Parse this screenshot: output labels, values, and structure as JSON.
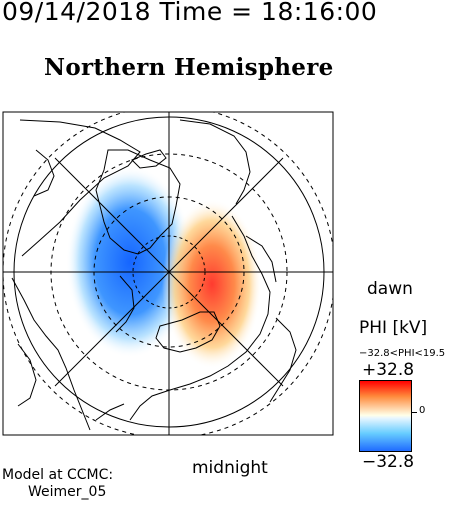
{
  "header": {
    "time_label": "09/14/2018 Time = 18:16:00",
    "title": "Northern Hemisphere"
  },
  "map": {
    "directions": {
      "dawn": "dawn",
      "midnight": "midnight"
    },
    "pattern": {
      "dawn_side_cell": {
        "sign": "positive",
        "color": "#ff5a3c"
      },
      "dusk_side_cell": {
        "sign": "negative",
        "color": "#1e6fff"
      }
    }
  },
  "colorbar": {
    "title": "PHI [kV]",
    "range_text": "−32.8<PHI<19.5",
    "max_label": "+32.8",
    "min_label": "−32.8",
    "zero_label": "0",
    "colors": {
      "max": "#ff0000",
      "zero": "#ffffe8",
      "min": "#1f6bff"
    }
  },
  "footer": {
    "model_label": "Model at CCMC:",
    "model_name": "Weimer_05"
  }
}
